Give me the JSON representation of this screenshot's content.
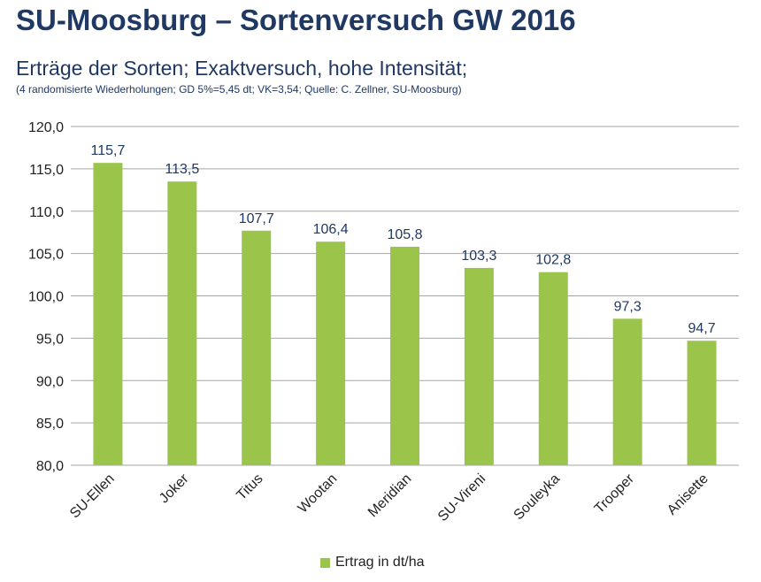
{
  "header": {
    "title": "SU-Moosburg – Sortenversuch GW 2016",
    "subtitle": "Erträge der Sorten; Exaktversuch, hohe Intensität;",
    "note": "(4 randomisierte Wiederholungen; GD 5%=5,45 dt; VK=3,54; Quelle: C. Zellner, SU-Moosburg)"
  },
  "chart_data": {
    "type": "bar",
    "categories": [
      "SU-Ellen",
      "Joker",
      "Titus",
      "Wootan",
      "Meridian",
      "SU-Vireni",
      "Souleyka",
      "Trooper",
      "Anisette"
    ],
    "series": [
      {
        "name": "Ertrag in dt/ha",
        "values": [
          115.7,
          113.5,
          107.7,
          106.4,
          105.8,
          103.3,
          102.8,
          97.3,
          94.7
        ],
        "labels": [
          "115,7",
          "113,5",
          "107,7",
          "106,4",
          "105,8",
          "103,3",
          "102,8",
          "97,3",
          "94,7"
        ],
        "color": "#9bc44a"
      }
    ],
    "ylim": [
      80,
      120
    ],
    "yticks": [
      80,
      85,
      90,
      95,
      100,
      105,
      110,
      115,
      120
    ],
    "ytick_labels": [
      "80,0",
      "85,0",
      "90,0",
      "95,0",
      "100,0",
      "105,0",
      "110,0",
      "115,0",
      "120,0"
    ],
    "grid": true,
    "legend": "bottom",
    "xlabel": "",
    "ylabel": ""
  },
  "colors": {
    "title": "#1f3864",
    "bar": "#9bc44a",
    "grid": "#a6a6a6"
  }
}
